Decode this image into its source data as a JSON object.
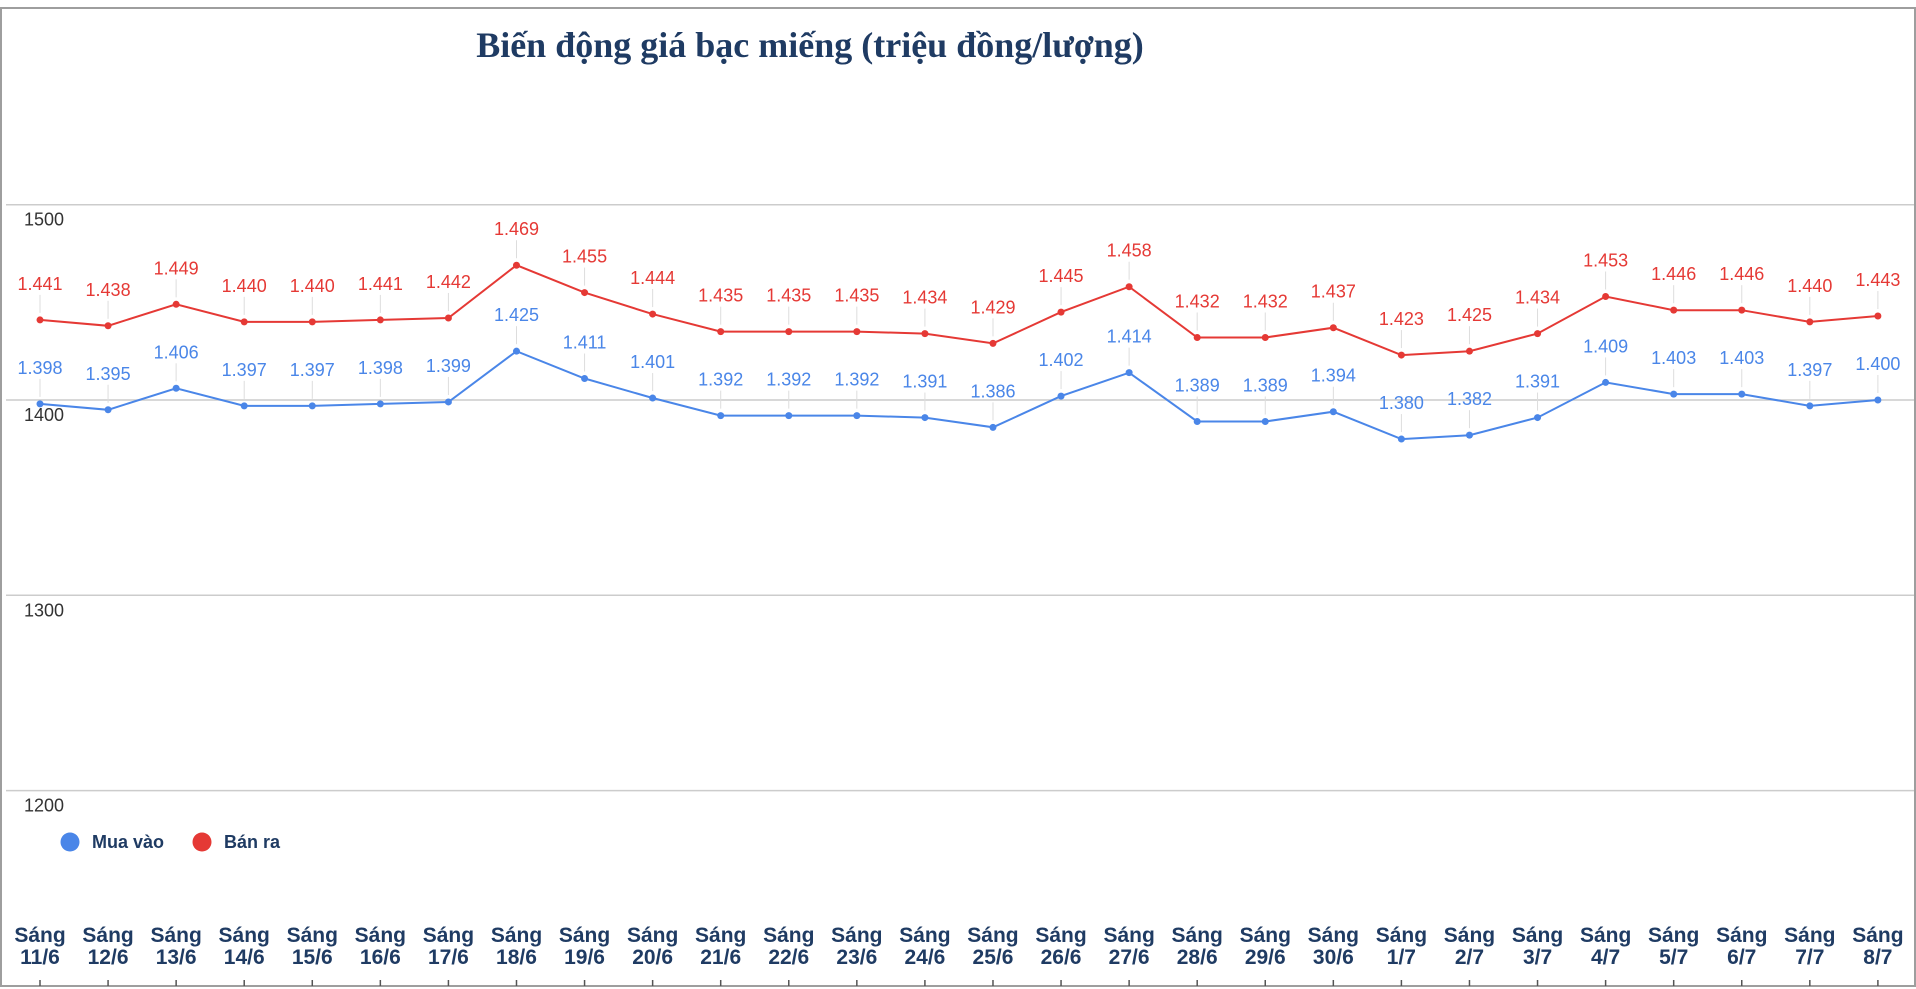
{
  "chart_data": {
    "type": "line",
    "title": "Biến động giá bạc miếng (triệu đồng/lượng)",
    "xlabel": "",
    "ylabel": "",
    "ylim": [
      1100,
      1600
    ],
    "yticks": [
      "1500",
      "1400",
      "1300",
      "1200"
    ],
    "grid": true,
    "legend_position": "bottom-left",
    "categories": [
      [
        "Sáng",
        "11/6"
      ],
      [
        "Sáng",
        "12/6"
      ],
      [
        "Sáng",
        "13/6"
      ],
      [
        "Sáng",
        "14/6"
      ],
      [
        "Sáng",
        "15/6"
      ],
      [
        "Sáng",
        "16/6"
      ],
      [
        "Sáng",
        "17/6"
      ],
      [
        "Sáng",
        "18/6"
      ],
      [
        "Sáng",
        "19/6"
      ],
      [
        "Sáng",
        "20/6"
      ],
      [
        "Sáng",
        "21/6"
      ],
      [
        "Sáng",
        "22/6"
      ],
      [
        "Sáng",
        "23/6"
      ],
      [
        "Sáng",
        "24/6"
      ],
      [
        "Sáng",
        "25/6"
      ],
      [
        "Sáng",
        "26/6"
      ],
      [
        "Sáng",
        "27/6"
      ],
      [
        "Sáng",
        "28/6"
      ],
      [
        "Sáng",
        "29/6"
      ],
      [
        "Sáng",
        "30/6"
      ],
      [
        "Sáng",
        "1/7"
      ],
      [
        "Sáng",
        "2/7"
      ],
      [
        "Sáng",
        "3/7"
      ],
      [
        "Sáng",
        "4/7"
      ],
      [
        "Sáng",
        "5/7"
      ],
      [
        "Sáng",
        "6/7"
      ],
      [
        "Sáng",
        "7/7"
      ],
      [
        "Sáng",
        "8/7"
      ]
    ],
    "series": [
      {
        "name": "Mua vào",
        "color": "#4a86e8",
        "values": [
          1398,
          1395,
          1406,
          1397,
          1397,
          1398,
          1399,
          1425,
          1411,
          1401,
          1392,
          1392,
          1392,
          1391,
          1386,
          1402,
          1414,
          1389,
          1389,
          1394,
          1380,
          1382,
          1391,
          1409,
          1403,
          1403,
          1397,
          1400
        ],
        "labels": [
          "1.398",
          "1.395",
          "1.406",
          "1.397",
          "1.397",
          "1.398",
          "1.399",
          "1.425",
          "1.411",
          "1.401",
          "1.392",
          "1.392",
          "1.392",
          "1.391",
          "1.386",
          "1.402",
          "1.414",
          "1.389",
          "1.389",
          "1.394",
          "1.380",
          "1.382",
          "1.391",
          "1.409",
          "1.403",
          "1.403",
          "1.397",
          "1.400"
        ]
      },
      {
        "name": "Bán ra",
        "color": "#e53935",
        "values": [
          1441,
          1438,
          1449,
          1440,
          1440,
          1441,
          1442,
          1469,
          1455,
          1444,
          1435,
          1435,
          1435,
          1434,
          1429,
          1445,
          1458,
          1432,
          1432,
          1437,
          1423,
          1425,
          1434,
          1453,
          1446,
          1446,
          1440,
          1443
        ],
        "labels": [
          "1.441",
          "1.438",
          "1.449",
          "1.440",
          "1.440",
          "1.441",
          "1.442",
          "1.469",
          "1.455",
          "1.444",
          "1.435",
          "1.435",
          "1.435",
          "1.434",
          "1.429",
          "1.445",
          "1.458",
          "1.432",
          "1.432",
          "1.437",
          "1.423",
          "1.425",
          "1.434",
          "1.453",
          "1.446",
          "1.446",
          "1.440",
          "1.443"
        ]
      }
    ]
  }
}
